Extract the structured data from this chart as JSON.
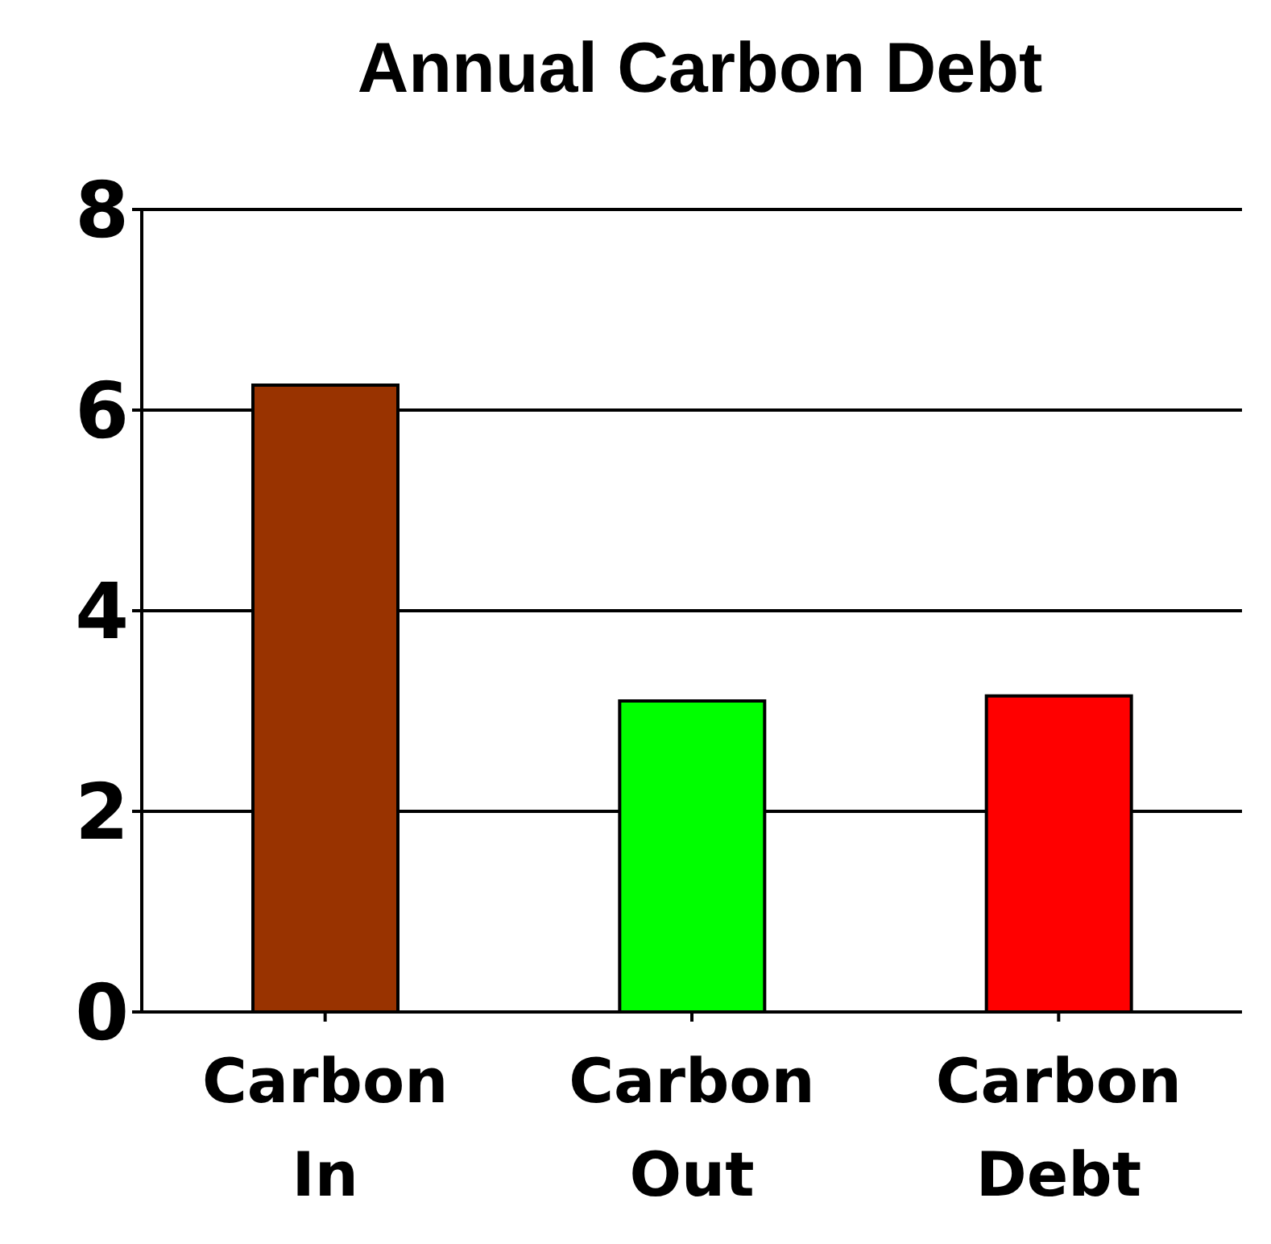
{
  "chart_data": {
    "type": "bar",
    "title": "Annual Carbon Debt",
    "categories": [
      "Carbon In",
      "Carbon Out",
      "Carbon Debt"
    ],
    "values": [
      6.25,
      3.1,
      3.15
    ],
    "colors": [
      "#993300",
      "#00ff00",
      "#ff0000"
    ],
    "ylim": [
      0,
      8
    ],
    "yticks": [
      0,
      2,
      4,
      6,
      8
    ],
    "grid": "y",
    "legend": false
  }
}
